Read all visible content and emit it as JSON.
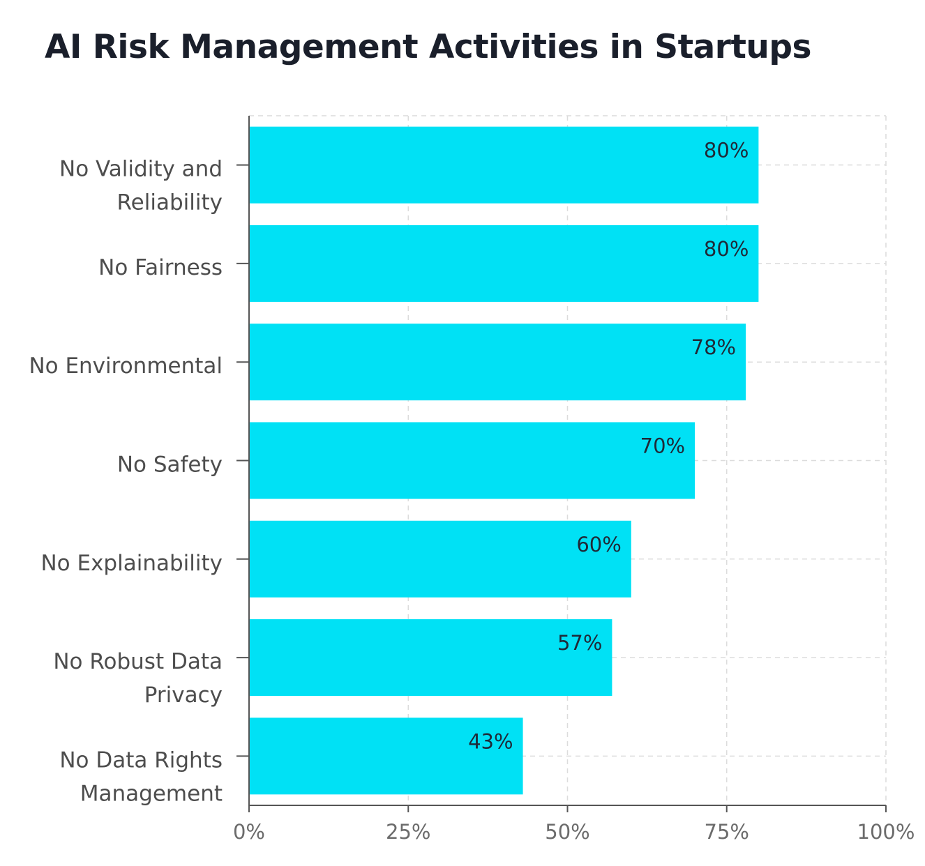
{
  "chart_data": {
    "type": "bar",
    "orientation": "horizontal",
    "title": "AI Risk Management Activities in Startups",
    "categories": [
      [
        "No Validity and",
        "Reliability"
      ],
      [
        "No Fairness"
      ],
      [
        "No Environmental"
      ],
      [
        "No Safety"
      ],
      [
        "No Explainability"
      ],
      [
        "No Robust Data",
        "Privacy"
      ],
      [
        "No Data Rights",
        "Management"
      ]
    ],
    "values": [
      80,
      80,
      78,
      70,
      60,
      57,
      43
    ],
    "data_labels": [
      "80%",
      "80%",
      "78%",
      "70%",
      "60%",
      "57%",
      "43%"
    ],
    "xlim": [
      0,
      100
    ],
    "x_ticks": [
      0,
      25,
      50,
      75,
      100
    ],
    "x_tick_labels": [
      "0%",
      "25%",
      "50%",
      "75%",
      "100%"
    ],
    "grid": "dashed",
    "bar_color": "#00e1f5"
  }
}
